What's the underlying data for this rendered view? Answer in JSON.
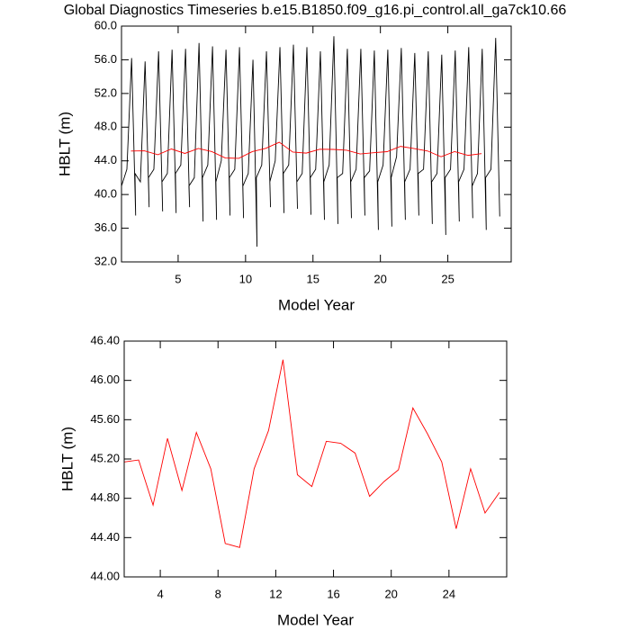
{
  "chart_data": [
    {
      "type": "line",
      "title": "Global Diagnostics Timeseries b.e15.B1850.f09_g16.pi_control.all_ga7ck10.66",
      "xlabel": "Model Year",
      "ylabel": "HBLT (m)",
      "xlim": [
        0.8,
        29.7
      ],
      "xticks": [
        5,
        10,
        15,
        20,
        25
      ],
      "ylim": [
        32,
        60
      ],
      "yticks": [
        {
          "value": 32,
          "label": "32.0"
        },
        {
          "value": 36,
          "label": "36.0"
        },
        {
          "value": 40,
          "label": "40.0"
        },
        {
          "value": 44,
          "label": "44.0"
        },
        {
          "value": 48,
          "label": "48.0"
        },
        {
          "value": 52,
          "label": "52.0"
        },
        {
          "value": 56,
          "label": "56.0"
        },
        {
          "value": 60,
          "label": "60.0"
        }
      ],
      "series": [
        {
          "color": "#000000",
          "x": [
            0.8,
            1.2,
            1.55,
            1.85,
            1.8,
            2.2,
            2.55,
            2.85,
            2.8,
            3.2,
            3.55,
            3.85,
            3.8,
            4.2,
            4.55,
            4.85,
            4.8,
            5.2,
            5.55,
            5.85,
            5.8,
            6.2,
            6.55,
            6.85,
            6.8,
            7.2,
            7.55,
            7.85,
            7.8,
            8.2,
            8.55,
            8.85,
            8.8,
            9.2,
            9.55,
            9.85,
            9.8,
            10.2,
            10.55,
            10.85,
            10.8,
            11.2,
            11.55,
            11.85,
            11.8,
            12.2,
            12.55,
            12.85,
            12.8,
            13.2,
            13.55,
            13.85,
            13.8,
            14.2,
            14.55,
            14.85,
            14.8,
            15.2,
            15.55,
            15.85,
            15.8,
            16.2,
            16.55,
            16.85,
            16.8,
            17.2,
            17.55,
            17.85,
            17.8,
            18.2,
            18.55,
            18.85,
            18.8,
            19.2,
            19.55,
            19.85,
            19.8,
            20.2,
            20.55,
            20.85,
            20.8,
            21.2,
            21.55,
            21.85,
            21.8,
            22.2,
            22.55,
            22.85,
            22.8,
            23.2,
            23.55,
            23.85,
            23.8,
            24.2,
            24.55,
            24.85,
            24.8,
            25.2,
            25.55,
            25.85,
            25.8,
            26.2,
            26.55,
            26.85,
            26.8,
            27.2,
            27.55,
            27.85,
            27.8,
            28.2,
            28.55,
            28.85
          ],
          "values": [
            41.0,
            43.0,
            56.2,
            37.5,
            42.5,
            41.5,
            55.8,
            38.5,
            42.0,
            43.0,
            57.0,
            38.0,
            41.5,
            42.5,
            57.2,
            37.8,
            42.5,
            43.5,
            57.3,
            38.5,
            41.0,
            42.0,
            58.0,
            36.8,
            42.0,
            43.5,
            57.6,
            37.0,
            41.5,
            44.0,
            57.2,
            37.5,
            42.0,
            43.0,
            57.5,
            37.2,
            41.0,
            42.5,
            56.0,
            33.8,
            42.0,
            43.5,
            57.0,
            38.5,
            41.5,
            44.0,
            57.5,
            37.8,
            42.5,
            43.5,
            57.8,
            38.3,
            41.5,
            42.5,
            57.5,
            37.6,
            42.0,
            43.0,
            57.0,
            37.0,
            41.5,
            43.5,
            58.8,
            36.5,
            42.0,
            42.5,
            57.3,
            37.2,
            41.5,
            43.0,
            57.3,
            37.5,
            42.0,
            42.8,
            57.1,
            35.8,
            41.5,
            43.5,
            57.2,
            36.2,
            42.0,
            44.5,
            57.4,
            37.0,
            41.5,
            43.0,
            56.8,
            37.5,
            42.5,
            43.0,
            57.0,
            36.5,
            41.5,
            42.5,
            56.6,
            35.2,
            42.0,
            43.0,
            57.1,
            36.8,
            41.5,
            43.0,
            57.5,
            37.2,
            41.0,
            42.5,
            57.3,
            35.8,
            42.0,
            43.0,
            58.6,
            37.4
          ]
        },
        {
          "color": "#ff0000",
          "x": [
            1.5,
            2.5,
            3.5,
            4.5,
            5.5,
            6.5,
            7.5,
            8.5,
            9.5,
            10.5,
            11.5,
            12.5,
            13.5,
            14.5,
            15.5,
            16.5,
            17.5,
            18.5,
            19.5,
            20.5,
            21.5,
            22.5,
            23.5,
            24.5,
            25.5,
            26.5,
            27.5
          ],
          "values": [
            45.17,
            45.19,
            44.73,
            45.41,
            44.88,
            45.47,
            45.1,
            44.34,
            44.3,
            45.1,
            45.49,
            46.21,
            45.04,
            44.92,
            45.38,
            45.36,
            45.26,
            44.82,
            44.97,
            45.09,
            45.72,
            45.46,
            45.17,
            44.49,
            45.1,
            44.65,
            44.86
          ]
        }
      ]
    },
    {
      "type": "line",
      "xlabel": "Model Year",
      "ylabel": "HBLT (m)",
      "xlim": [
        1.5,
        28
      ],
      "xticks": [
        4,
        8,
        12,
        16,
        20,
        24
      ],
      "ylim": [
        44,
        46.4
      ],
      "yticks": [
        {
          "value": 44,
          "label": "44.00"
        },
        {
          "value": 44.4,
          "label": "44.40"
        },
        {
          "value": 44.8,
          "label": "44.80"
        },
        {
          "value": 45.2,
          "label": "45.20"
        },
        {
          "value": 45.6,
          "label": "45.60"
        },
        {
          "value": 46,
          "label": "46.00"
        },
        {
          "value": 46.4,
          "label": "46.40"
        }
      ],
      "series": [
        {
          "color": "#ff0000",
          "x": [
            1.5,
            2.5,
            3.5,
            4.5,
            5.5,
            6.5,
            7.5,
            8.5,
            9.5,
            10.5,
            11.5,
            12.5,
            13.5,
            14.5,
            15.5,
            16.5,
            17.5,
            18.5,
            19.5,
            20.5,
            21.5,
            22.5,
            23.5,
            24.5,
            25.5,
            26.5,
            27.5
          ],
          "values": [
            45.17,
            45.19,
            44.73,
            45.41,
            44.88,
            45.47,
            45.1,
            44.34,
            44.3,
            45.1,
            45.49,
            46.21,
            45.04,
            44.92,
            45.38,
            45.36,
            45.26,
            44.82,
            44.97,
            45.09,
            45.72,
            45.46,
            45.17,
            44.49,
            45.1,
            44.65,
            44.86
          ]
        }
      ]
    }
  ]
}
